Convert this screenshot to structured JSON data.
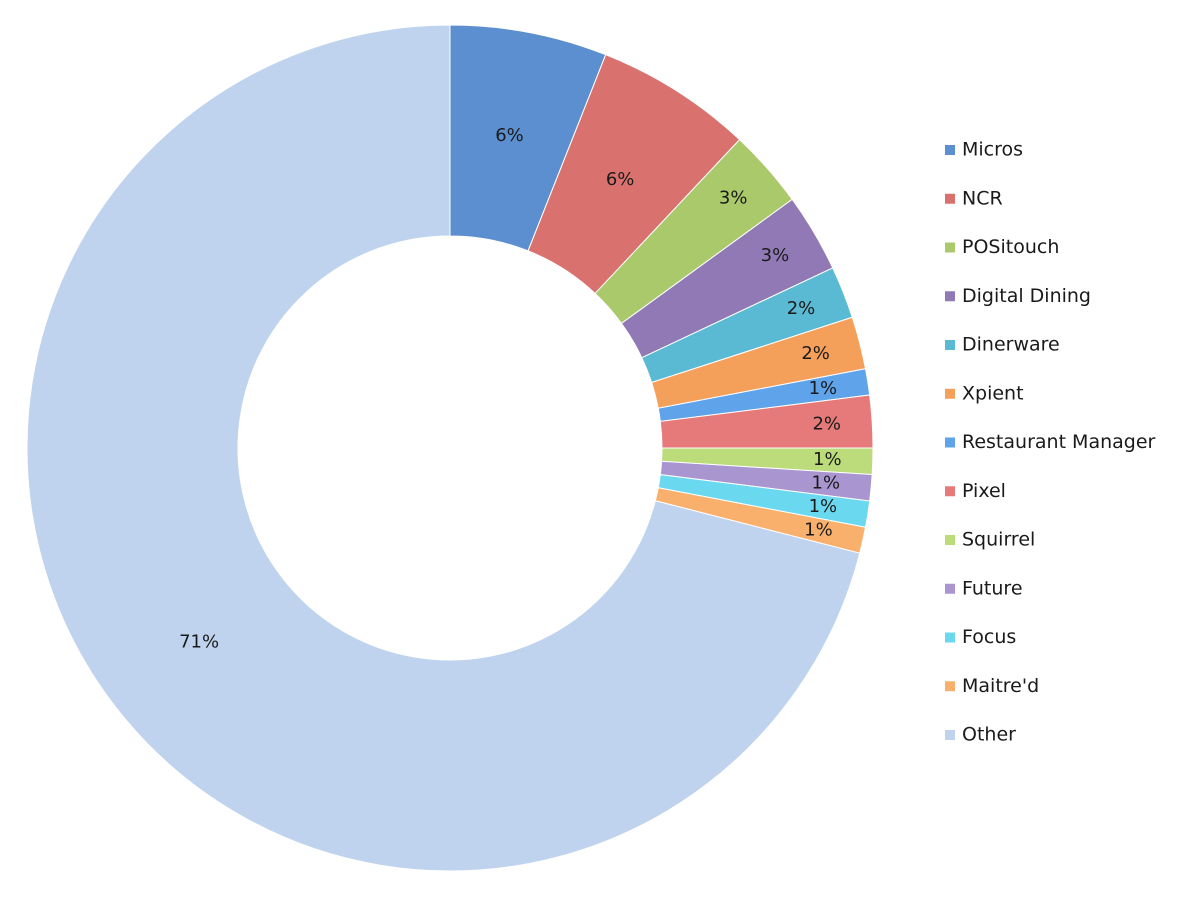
{
  "chart_data": {
    "type": "donut",
    "categories": [
      "Micros",
      "NCR",
      "POSitouch",
      "Digital Dining",
      "Dinerware",
      "Xpient",
      "Restaurant Manager",
      "Pixel",
      "Squirrel",
      "Future",
      "Focus",
      "Maitre'd",
      "Other"
    ],
    "values": [
      6,
      6,
      3,
      3,
      2,
      2,
      1,
      2,
      1,
      1,
      1,
      1,
      71
    ],
    "value_labels": [
      "6%",
      "6%",
      "3%",
      "3%",
      "2%",
      "2%",
      "1%",
      "2%",
      "1%",
      "1%",
      "1%",
      "1%",
      "71%"
    ],
    "colors": [
      "#5b8fcf",
      "#d9726f",
      "#a9c96a",
      "#9079b4",
      "#5bbad3",
      "#f5a05a",
      "#5fa3ea",
      "#e67a7a",
      "#bcdc7c",
      "#a995d0",
      "#6ad9f0",
      "#f9b06d",
      "#bfd3ee"
    ],
    "legend": "right"
  }
}
